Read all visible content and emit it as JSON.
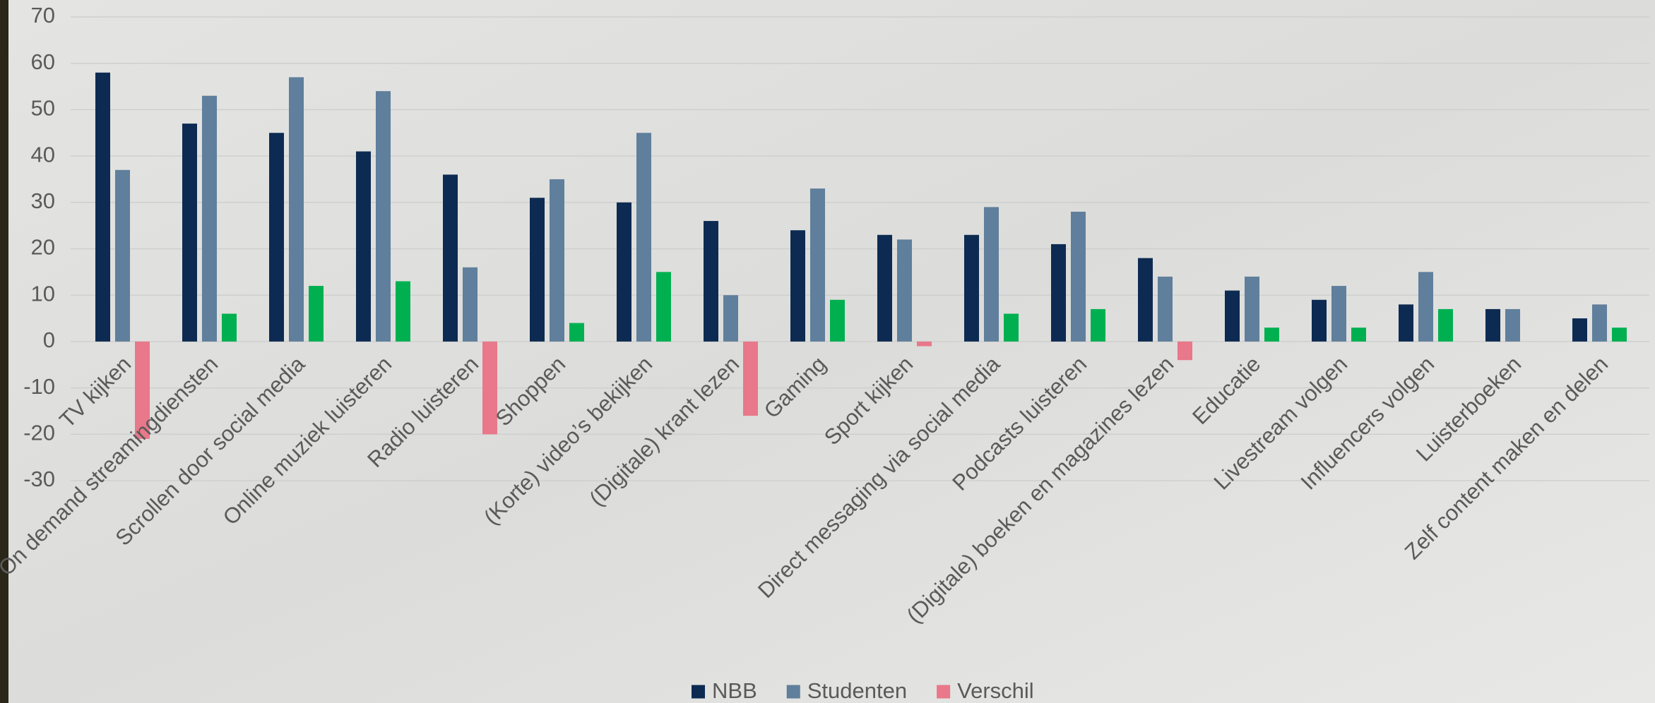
{
  "chart_data": {
    "type": "bar",
    "categories": [
      "TV kijken",
      "On demand streamingdiensten",
      "Scrollen door social media",
      "Online muziek luisteren",
      "Radio luisteren",
      "Shoppen",
      "(Korte) video’s bekijken",
      "(Digitale) krant lezen",
      "Gaming",
      "Sport kijken",
      "Direct messaging via social media",
      "Podcasts luisteren",
      "(Digitale) boeken en magazines lezen",
      "Educatie",
      "Livestream volgen",
      "Influencers volgen",
      "Luisterboeken",
      "Zelf content maken en delen"
    ],
    "series": [
      {
        "name": "NBB",
        "color": "#0d2b52",
        "values": [
          58,
          47,
          45,
          41,
          36,
          31,
          30,
          26,
          24,
          23,
          23,
          21,
          18,
          11,
          9,
          8,
          7,
          5
        ]
      },
      {
        "name": "Studenten",
        "color": "#5f7f9c",
        "values": [
          37,
          53,
          57,
          54,
          16,
          35,
          45,
          10,
          33,
          22,
          29,
          28,
          14,
          14,
          12,
          15,
          7,
          8
        ]
      },
      {
        "name": "Verschil",
        "color": "#e8788a",
        "positive_color": "#00b050",
        "values": [
          -21,
          6,
          12,
          13,
          -20,
          4,
          15,
          -16,
          9,
          -1,
          6,
          7,
          -4,
          3,
          3,
          7,
          0,
          3
        ]
      }
    ],
    "ylim": [
      -30,
      70
    ],
    "yticks": [
      -30,
      -20,
      -10,
      0,
      10,
      20,
      30,
      40,
      50,
      60,
      70
    ],
    "grid": true,
    "legend": "bottom"
  }
}
